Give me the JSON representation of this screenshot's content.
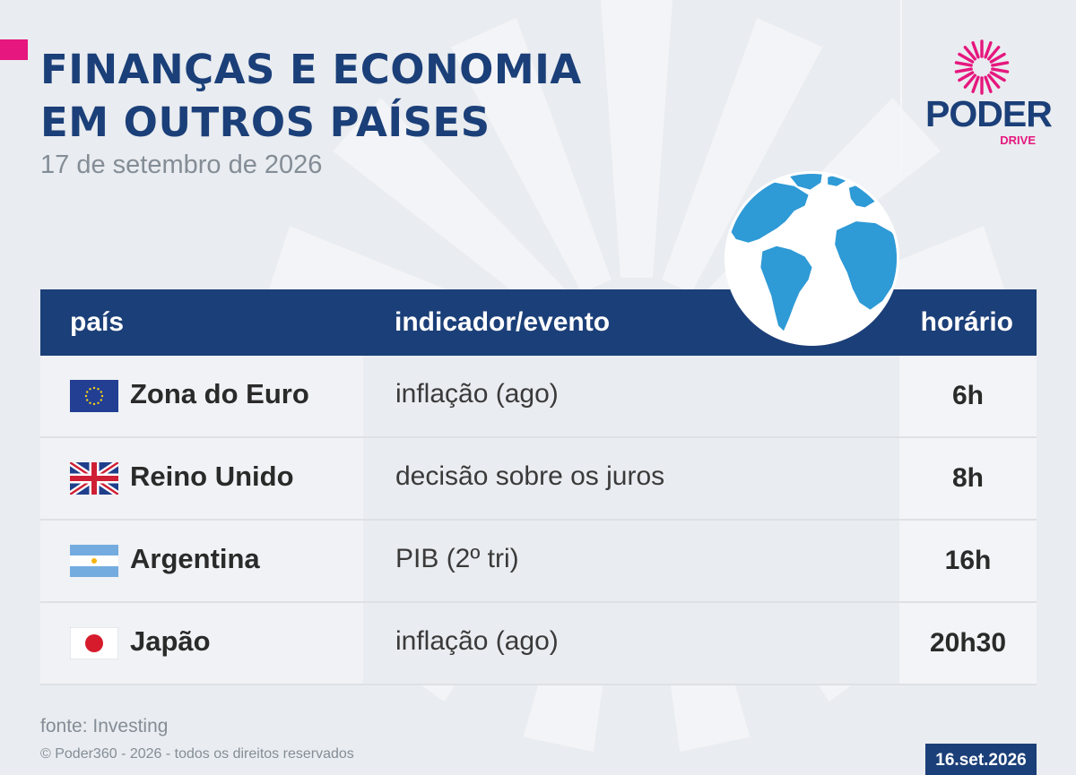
{
  "header": {
    "title_line1": "FINANÇAS E ECONOMIA",
    "title_line2": "EM OUTROS PAÍSES",
    "date": "17 de setembro de 2026"
  },
  "logo": {
    "wordmark": "PODER",
    "sub": "DRIVE"
  },
  "table": {
    "headers": {
      "country": "país",
      "indicator": "indicador/evento",
      "time": "horário"
    },
    "rows": [
      {
        "flag": "eu-flag-icon",
        "country": "Zona do Euro",
        "indicator": "inflação (ago)",
        "time": "6h"
      },
      {
        "flag": "uk-flag-icon",
        "country": "Reino Unido",
        "indicator": "decisão sobre os juros",
        "time": "8h"
      },
      {
        "flag": "argentina-flag-icon",
        "country": "Argentina",
        "indicator": "PIB (2º tri)",
        "time": "16h"
      },
      {
        "flag": "japan-flag-icon",
        "country": "Japão",
        "indicator": "inflação (ago)",
        "time": "20h30"
      }
    ]
  },
  "footer": {
    "source": "fonte: Investing",
    "copyright": "© Poder360 - 2026 - todos os direitos reservados",
    "date_badge": "16.set.2026"
  },
  "colors": {
    "navy": "#1b3f78",
    "magenta": "#e6177e",
    "globe_blue": "#2e9ad6",
    "background": "#e9ecf0"
  },
  "icons": {
    "globe": "globe-icon",
    "logo": "poder-burst-logo",
    "watermark": "watermark-burst"
  }
}
